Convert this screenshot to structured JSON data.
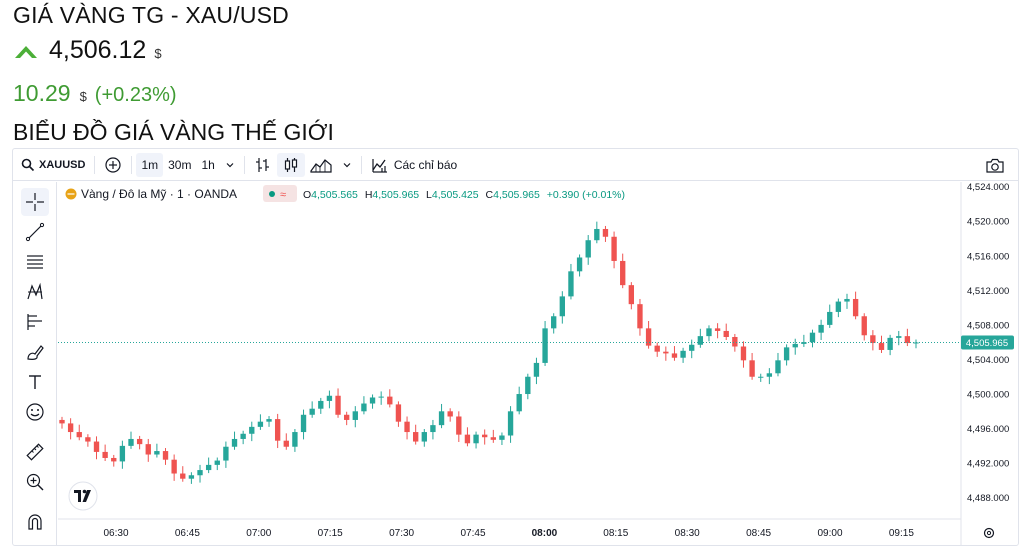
{
  "header": {
    "title": "GIÁ VÀNG TG - XAU/USD",
    "price": "4,506.12",
    "price_currency": "$",
    "change_abs": "10.29",
    "change_currency": "$",
    "change_pct": "(+0.23%)",
    "section_title": "BIỂU ĐỒ GIÁ VÀNG THẾ GIỚI"
  },
  "toolbar": {
    "symbol": "XAUUSD",
    "intervals": [
      "1m",
      "30m",
      "1h"
    ],
    "indicators_label": "Các chỉ báo"
  },
  "legend": {
    "instrument": "Vàng / Đô la Mỹ · 1 · OANDA",
    "o_label": "O",
    "o_value": "4,505.565",
    "h_label": "H",
    "h_value": "4,505.965",
    "l_label": "L",
    "l_value": "4,505.425",
    "c_label": "C",
    "c_value": "4,505.965",
    "change": "+0.390 (+0.01%)"
  },
  "colors": {
    "up": "#26a69a",
    "down": "#ef5350",
    "accent_green": "#3f9b33",
    "last_price_tag": "#26a69a"
  },
  "chart_data": {
    "type": "candlestick",
    "interval": "1m",
    "x_ticks": [
      "06:30",
      "06:45",
      "07:00",
      "07:15",
      "07:30",
      "07:45",
      "08:00",
      "08:15",
      "08:30",
      "08:45",
      "09:00",
      "09:15"
    ],
    "y_ticks": [
      "4,488.000",
      "4,492.000",
      "4,496.000",
      "4,500.000",
      "4,504.000",
      "4,508.000",
      "4,512.000",
      "4,516.000",
      "4,520.000",
      "4,524.000"
    ],
    "ylim": [
      4486,
      4525
    ],
    "last_price": "4,505.965",
    "series": [
      4496.6,
      4495.6,
      4495.0,
      4494.5,
      4493.3,
      4492.6,
      4492.2,
      4494.0,
      4494.8,
      4494.2,
      4493.0,
      4493.4,
      4492.4,
      4490.8,
      4490.2,
      4490.6,
      4491.2,
      4491.8,
      4492.3,
      4493.9,
      4494.8,
      4495.4,
      4496.2,
      4496.8,
      4497.1,
      4494.6,
      4493.9,
      4495.6,
      4497.6,
      4498.3,
      4499.2,
      4499.8,
      4497.6,
      4497.0,
      4498.0,
      4498.9,
      4499.6,
      4499.7,
      4498.8,
      4496.8,
      4495.6,
      4494.5,
      4495.6,
      4496.4,
      4498.0,
      4497.4,
      4495.3,
      4494.3,
      4495.3,
      4495.0,
      4494.7,
      4495.2,
      4498.0,
      4500.0,
      4502.0,
      4503.6,
      4507.6,
      4509.0,
      4511.3,
      4514.2,
      4515.8,
      4517.8,
      4519.1,
      4518.2,
      4515.4,
      4512.6,
      4510.4,
      4507.6,
      4505.6,
      4504.9,
      4504.7,
      4504.2,
      4505.0,
      4505.7,
      4506.7,
      4507.6,
      4507.3,
      4506.6,
      4505.5,
      4503.9,
      4502.0,
      4502.0,
      4502.4,
      4503.9,
      4505.4,
      4505.8,
      4506.0,
      4507.1,
      4508.0,
      4509.5,
      4510.7,
      4511.0,
      4509.0,
      4506.8,
      4505.9,
      4505.1,
      4506.5,
      4506.7,
      4505.9,
      4505.965
    ]
  }
}
